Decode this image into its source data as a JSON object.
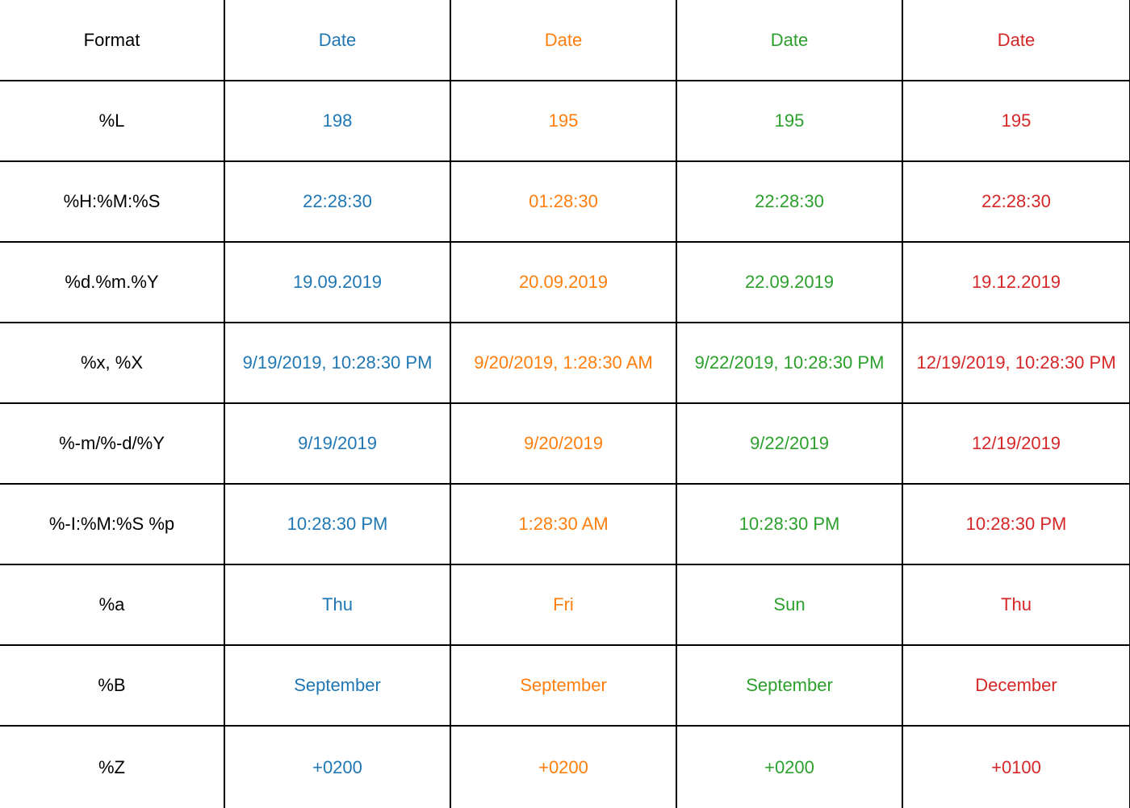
{
  "header": {
    "format_label": "Format",
    "columns": [
      {
        "label": "Date",
        "color": "#1f77b4"
      },
      {
        "label": "Date",
        "color": "#ff7f0e"
      },
      {
        "label": "Date",
        "color": "#2ca02c"
      },
      {
        "label": "Date",
        "color": "#d62728"
      }
    ]
  },
  "rows": [
    {
      "format": "%L",
      "values": [
        "198",
        "195",
        "195",
        "195"
      ]
    },
    {
      "format": "%H:%M:%S",
      "values": [
        "22:28:30",
        "01:28:30",
        "22:28:30",
        "22:28:30"
      ]
    },
    {
      "format": "%d.%m.%Y",
      "values": [
        "19.09.2019",
        "20.09.2019",
        "22.09.2019",
        "19.12.2019"
      ]
    },
    {
      "format": "%x, %X",
      "values": [
        "9/19/2019, 10:28:30 PM",
        "9/20/2019, 1:28:30 AM",
        "9/22/2019, 10:28:30 PM",
        "12/19/2019, 10:28:30 PM"
      ]
    },
    {
      "format": "%-m/%-d/%Y",
      "values": [
        "9/19/2019",
        "9/20/2019",
        "9/22/2019",
        "12/19/2019"
      ]
    },
    {
      "format": "%-I:%M:%S %p",
      "values": [
        "10:28:30 PM",
        "1:28:30 AM",
        "10:28:30 PM",
        "10:28:30 PM"
      ]
    },
    {
      "format": "%a",
      "values": [
        "Thu",
        "Fri",
        "Sun",
        "Thu"
      ]
    },
    {
      "format": "%B",
      "values": [
        "September",
        "September",
        "September",
        "December"
      ]
    },
    {
      "format": "%Z",
      "values": [
        "+0200",
        "+0200",
        "+0200",
        "+0100"
      ]
    }
  ]
}
